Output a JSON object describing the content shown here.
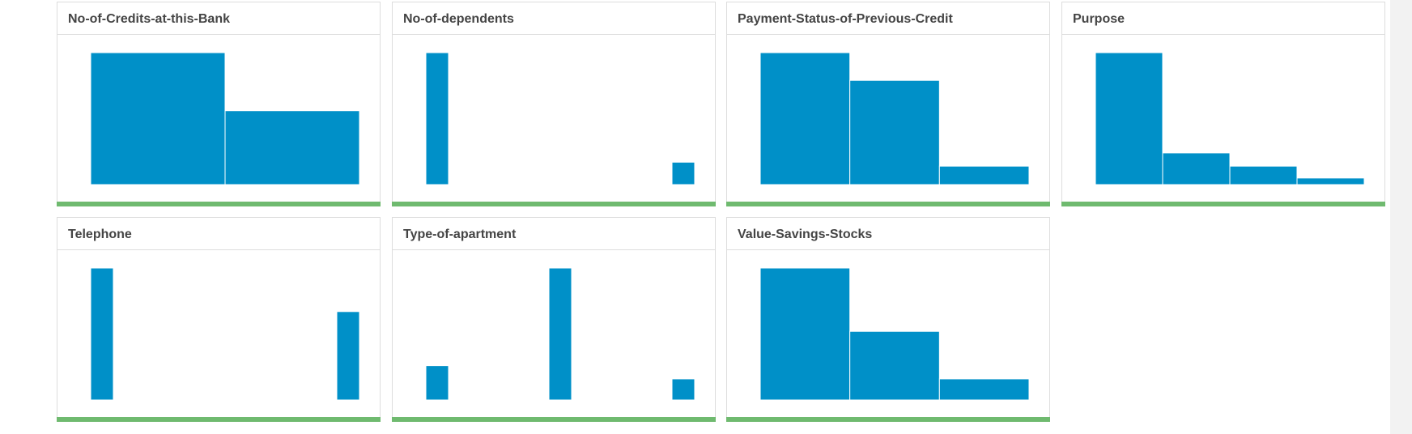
{
  "bar_color": "#0090c8",
  "status_color": "#6fba6f",
  "cards": [
    {
      "title": "No-of-Credits-at-this-Bank",
      "chart_data": {
        "type": "bar",
        "layout": "adjacent",
        "values": [
          100,
          56
        ]
      }
    },
    {
      "title": "No-of-dependents",
      "chart_data": {
        "type": "bar",
        "layout": "spaced",
        "values": [
          100,
          17
        ]
      }
    },
    {
      "title": "Payment-Status-of-Previous-Credit",
      "chart_data": {
        "type": "bar",
        "layout": "adjacent",
        "values": [
          100,
          79,
          14
        ]
      }
    },
    {
      "title": "Purpose",
      "chart_data": {
        "type": "bar",
        "layout": "adjacent",
        "values": [
          100,
          24,
          14,
          5
        ]
      }
    },
    {
      "title": "Telephone",
      "chart_data": {
        "type": "bar",
        "layout": "spaced",
        "values": [
          100,
          67
        ]
      }
    },
    {
      "title": "Type-of-apartment",
      "chart_data": {
        "type": "bar",
        "layout": "spaced",
        "values": [
          26,
          100,
          16
        ]
      }
    },
    {
      "title": "Value-Savings-Stocks",
      "chart_data": {
        "type": "bar",
        "layout": "adjacent",
        "values": [
          100,
          52,
          16
        ]
      }
    }
  ]
}
